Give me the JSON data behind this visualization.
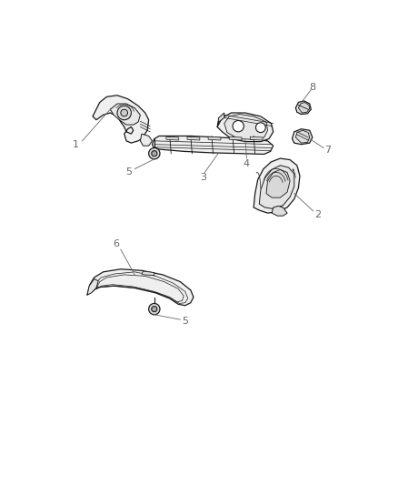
{
  "background_color": "#ffffff",
  "line_color": "#1a1a1a",
  "label_color": "#666666",
  "fig_width": 4.38,
  "fig_height": 5.33,
  "dpi": 100
}
